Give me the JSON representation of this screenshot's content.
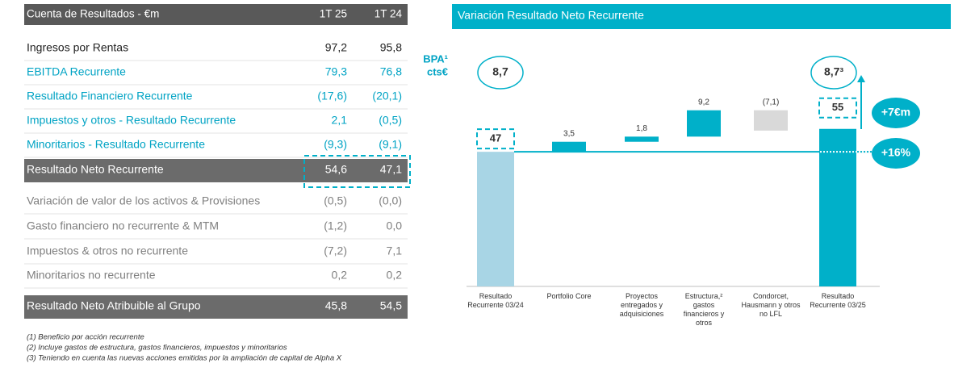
{
  "table": {
    "header": [
      "Cuenta de Resultados - €m",
      "1T 25",
      "1T 24"
    ],
    "rows": [
      [
        "Ingresos por Rentas",
        "97,2",
        "95,8"
      ],
      [
        "EBITDA Recurrente",
        "79,3",
        "76,8"
      ],
      [
        "Resultado Financiero Recurrente",
        "(17,6)",
        "(20,1)"
      ],
      [
        "Impuestos y otros - Resultado Recurrente",
        "2,1",
        "(0,5)"
      ],
      [
        "Minoritarios - Resultado Recurrente",
        "(9,3)",
        "(9,1)"
      ],
      [
        "Resultado Neto Recurrente",
        "54,6",
        "47,1"
      ],
      [
        "Variación de valor de los activos & Provisiones",
        "(0,5)",
        "(0,0)"
      ],
      [
        "Gasto financiero no recurrente & MTM",
        "(1,2)",
        "0,0"
      ],
      [
        "Impuestos & otros no recurrente",
        "(7,2)",
        "7,1"
      ],
      [
        "Minoritarios no recurrente",
        "0,2",
        "0,2"
      ],
      [
        "Resultado Neto Atribuible al Grupo",
        "45,8",
        "54,5"
      ]
    ]
  },
  "footnotes": [
    "(1)  Beneficio por acción recurrente",
    "(2)  Incluye gastos de estructura, gastos financieros, impuestos y minoritarios",
    "(3)  Teniendo en cuenta las nuevas acciones emitidas por la ampliación de capital de Alpha X"
  ],
  "chart_data": {
    "type": "waterfall",
    "title": "Variación Resultado Neto Recurrente",
    "categories": [
      "Resultado Recurrente 03/24",
      "Portfolio Core",
      "Proyectos entregados y adquisiciones",
      "Estructura,² gastos financieros y otros",
      "Condorcet, Hausmann y otros no LFL",
      "Resultado Recurrente 03/25"
    ],
    "values": [
      47,
      3.5,
      1.8,
      9.2,
      -7.1,
      55
    ],
    "value_labels": [
      "47",
      "3,5",
      "1,8",
      "9,2",
      "(7,1)",
      "55"
    ],
    "measure": [
      "absolute",
      "relative",
      "relative",
      "relative",
      "relative",
      "total"
    ],
    "colors": [
      "#a8d5e5",
      "#00b0c9",
      "#00b0c9",
      "#00b0c9",
      "#d9d9d9",
      "#00b0c9"
    ],
    "annotations": {
      "eps_label": "BPA¹",
      "eps_unit": "cts€",
      "eps_start": "8,7",
      "eps_end": "8,7³",
      "delta_abs": "+7€m",
      "delta_pct": "+16%"
    }
  }
}
